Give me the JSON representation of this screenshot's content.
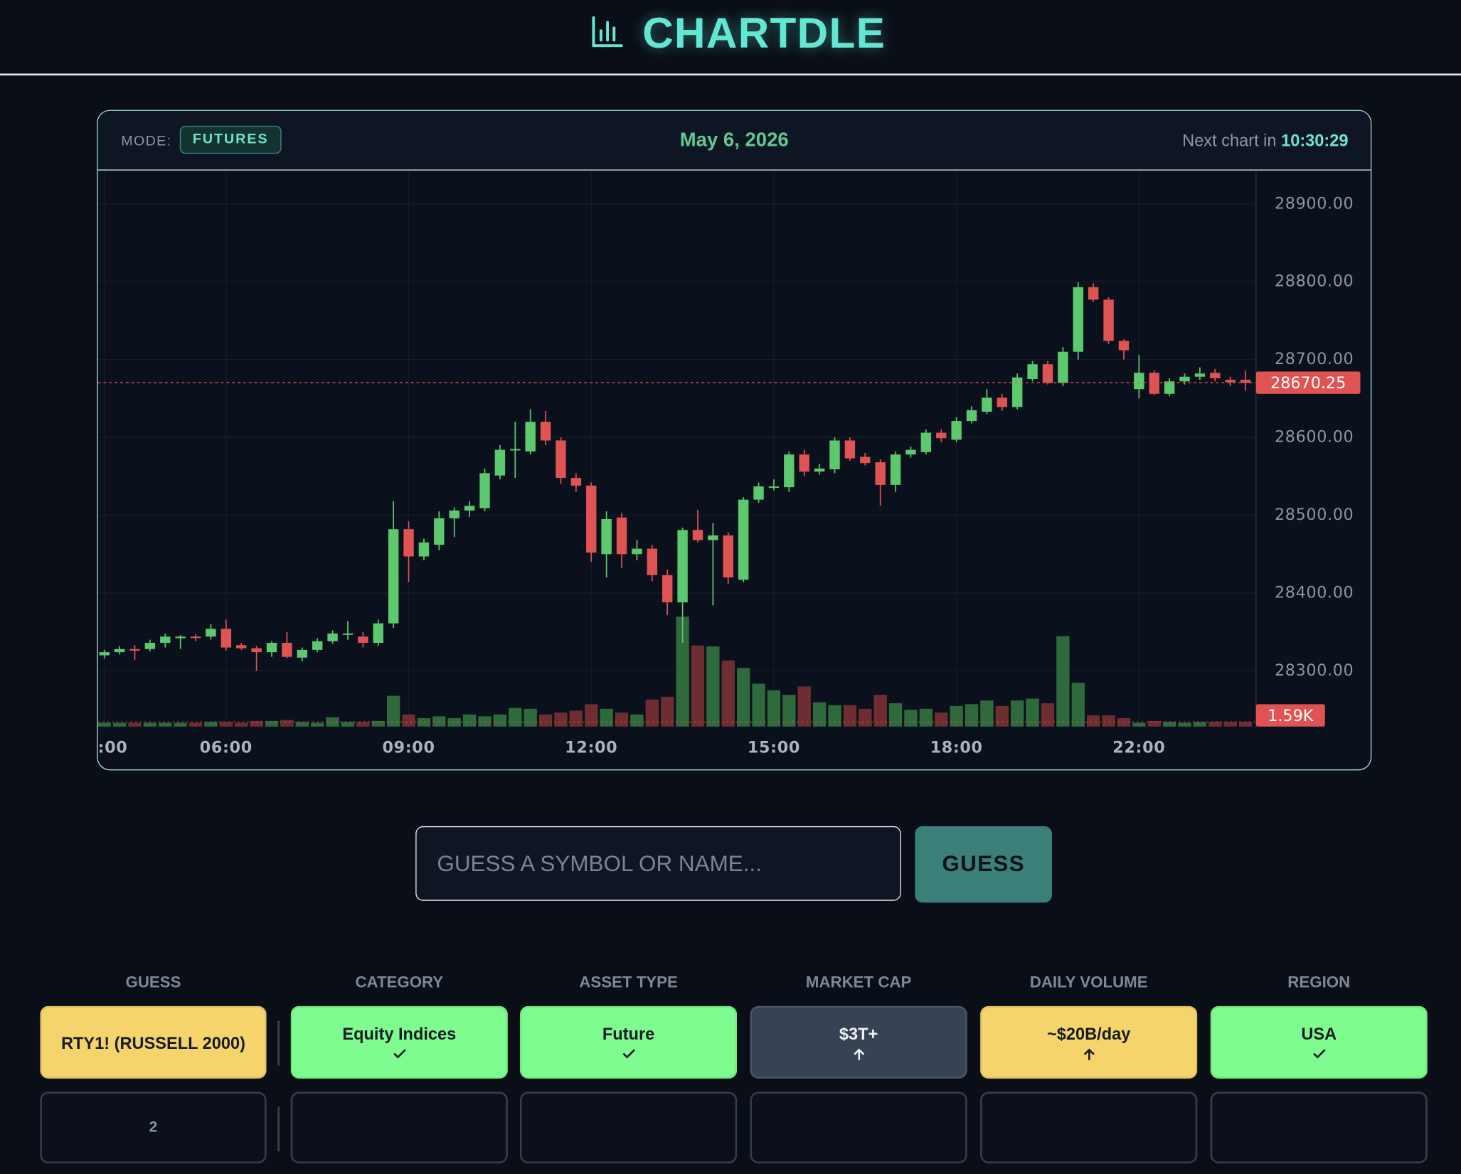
{
  "header": {
    "title": "CHARTDLE"
  },
  "panel": {
    "mode_label": "MODE:",
    "mode": "FUTURES",
    "date": "May 6, 2026",
    "next_label": "Next chart in",
    "countdown": "10:30:29"
  },
  "chart_data": {
    "type": "candlestick",
    "up_color": "#5cc96f",
    "down_color": "#e05353",
    "volume_up_color": "#2e6a3c",
    "volume_down_color": "#6e2d31",
    "open": [
      28320,
      28324,
      28328,
      28328,
      28336,
      28342,
      28344,
      28344,
      28354,
      28333,
      28329,
      28324,
      28336,
      28317,
      28327,
      28338,
      28347,
      28344,
      28336,
      28361,
      28482,
      28447,
      28462,
      28496,
      28506,
      28509,
      28551,
      28584,
      28582,
      28620,
      28596,
      28548,
      28538,
      28450,
      28497,
      28450,
      28457,
      28423,
      28388,
      28481,
      28468,
      28474,
      28417,
      28520,
      28536,
      28536,
      28578,
      28556,
      28559,
      28596,
      28575,
      28568,
      28539,
      28578,
      28581,
      28606,
      28597,
      28621,
      28633,
      28651,
      28639,
      28675,
      28694,
      28670,
      28710,
      28793,
      28777,
      28724,
      28662,
      28683,
      28656,
      28672,
      28678,
      28683,
      28674,
      28674
    ],
    "high": [
      28327,
      28332,
      28333,
      28340,
      28348,
      28346,
      28347,
      28360,
      28366,
      28336,
      28332,
      28338,
      28350,
      28330,
      28342,
      28352,
      28364,
      28350,
      28366,
      28518,
      28492,
      28470,
      28505,
      28510,
      28518,
      28560,
      28590,
      28620,
      28636,
      28634,
      28600,
      28554,
      28542,
      28505,
      28503,
      28468,
      28462,
      28430,
      28484,
      28507,
      28490,
      28478,
      28523,
      28542,
      28546,
      28582,
      28584,
      28566,
      28600,
      28600,
      28580,
      28572,
      28582,
      28588,
      28610,
      28610,
      28626,
      28640,
      28662,
      28656,
      28682,
      28698,
      28698,
      28716,
      28799,
      28798,
      28780,
      28726,
      28706,
      28686,
      28676,
      28682,
      28690,
      28688,
      28678,
      28686
    ],
    "low": [
      28316,
      28321,
      28314,
      28325,
      28330,
      28328,
      28338,
      28340,
      28326,
      28327,
      28300,
      28318,
      28316,
      28312,
      28324,
      28335,
      28340,
      28330,
      28332,
      28355,
      28414,
      28442,
      28455,
      28472,
      28498,
      28505,
      28546,
      28548,
      28578,
      28590,
      28540,
      28530,
      28440,
      28420,
      28432,
      28442,
      28415,
      28372,
      28336,
      28465,
      28384,
      28412,
      28414,
      28516,
      28532,
      28530,
      28550,
      28552,
      28554,
      28570,
      28564,
      28512,
      28530,
      28574,
      28578,
      28594,
      28594,
      28618,
      28630,
      28634,
      28636,
      28672,
      28668,
      28666,
      28700,
      28774,
      28720,
      28700,
      28650,
      28654,
      28653,
      28668,
      28674,
      28672,
      28666,
      28660
    ],
    "close": [
      28324,
      28328,
      28326,
      28336,
      28344,
      28344,
      28343,
      28354,
      28330,
      28329,
      28324,
      28336,
      28318,
      28327,
      28338,
      28348,
      28348,
      28336,
      28361,
      28482,
      28447,
      28465,
      28496,
      28506,
      28512,
      28554,
      28584,
      28585,
      28620,
      28596,
      28548,
      28538,
      28452,
      28495,
      28450,
      28457,
      28423,
      28388,
      28481,
      28468,
      28474,
      28420,
      28520,
      28537,
      28537,
      28578,
      28556,
      28560,
      28596,
      28573,
      28567,
      28539,
      28578,
      28584,
      28606,
      28599,
      28621,
      28635,
      28651,
      28639,
      28677,
      28694,
      28670,
      28710,
      28793,
      28777,
      28724,
      28712,
      28683,
      28656,
      28672,
      28678,
      28682,
      28676,
      28671,
      28670.25
    ],
    "volume": {
      "values": [
        1280,
        1280,
        1280,
        1280,
        1280,
        1280,
        1280,
        1600,
        1600,
        1280,
        1920,
        1920,
        2240,
        1600,
        1280,
        3200,
        1600,
        1600,
        1920,
        10560,
        4160,
        2880,
        3520,
        2880,
        4160,
        3520,
        4160,
        6400,
        6080,
        4160,
        4800,
        5440,
        7680,
        6080,
        4800,
        4160,
        9280,
        10240,
        37760,
        27840,
        27520,
        22720,
        20160,
        14720,
        12480,
        10880,
        13760,
        8320,
        7360,
        7360,
        6080,
        10880,
        8000,
        5760,
        6080,
        4800,
        7040,
        7680,
        8960,
        7040,
        8960,
        9600,
        8000,
        31040,
        15040,
        3840,
        3840,
        2880,
        1280,
        1920,
        1600,
        1280,
        1600,
        1600,
        1600,
        1590
      ],
      "value_labels": [
        null,
        null,
        null,
        null,
        null,
        null,
        null,
        null,
        null,
        null,
        null,
        null,
        null,
        null,
        null,
        null,
        null,
        null,
        null,
        null,
        null,
        null,
        null,
        null,
        null,
        null,
        null,
        null,
        null,
        null,
        null,
        null,
        null,
        null,
        null,
        null,
        null,
        null,
        null,
        null,
        null,
        null,
        null,
        null,
        null,
        null,
        null,
        null,
        null,
        null,
        null,
        null,
        null,
        null,
        null,
        null,
        null,
        null,
        null,
        null,
        null,
        null,
        null,
        null,
        null,
        null,
        null,
        null,
        null,
        null,
        null,
        null,
        null,
        null,
        null,
        "1.59K"
      ]
    },
    "ylim": [
      28226,
      28943
    ],
    "yticks": [
      {
        "value": 28300,
        "label": "28300.00"
      },
      {
        "value": 28400,
        "label": "28400.00"
      },
      {
        "value": 28500,
        "label": "28500.00"
      },
      {
        "value": 28600,
        "label": "28600.00"
      },
      {
        "value": 28700,
        "label": "28700.00"
      },
      {
        "value": 28800,
        "label": "28800.00"
      },
      {
        "value": 28900,
        "label": "28900.00"
      }
    ],
    "y2lim": [
      0,
      40000
    ],
    "xticks": [
      {
        "value": 0,
        "label": ":00"
      },
      {
        "value": 8,
        "label": "06:00"
      },
      {
        "value": 20,
        "label": "09:00"
      },
      {
        "value": 32,
        "label": "12:00"
      },
      {
        "value": 44,
        "label": "15:00"
      },
      {
        "value": 56,
        "label": "18:00"
      },
      {
        "value": 68,
        "label": "22:00"
      }
    ],
    "grid": true
  },
  "input": {
    "placeholder": "GUESS A SYMBOL OR NAME..."
  },
  "button": "GUESS",
  "table": {
    "headers": [
      "GUESS",
      "CATEGORY",
      "ASSET TYPE",
      "MARKET CAP",
      "DAILY VOLUME",
      "REGION"
    ],
    "rows": [
      [
        "RTY1! (RUSSELL 2000)",
        "Equity Indices",
        "Future",
        "$3T+",
        "~$20B/day",
        "USA"
      ],
      [
        "2"
      ]
    ],
    "cell_colors": [
      [
        "#f5d56b",
        "#7efc8f",
        "#7efc8f",
        "#374254",
        "#f5d56b",
        "#7efc8f"
      ]
    ]
  }
}
